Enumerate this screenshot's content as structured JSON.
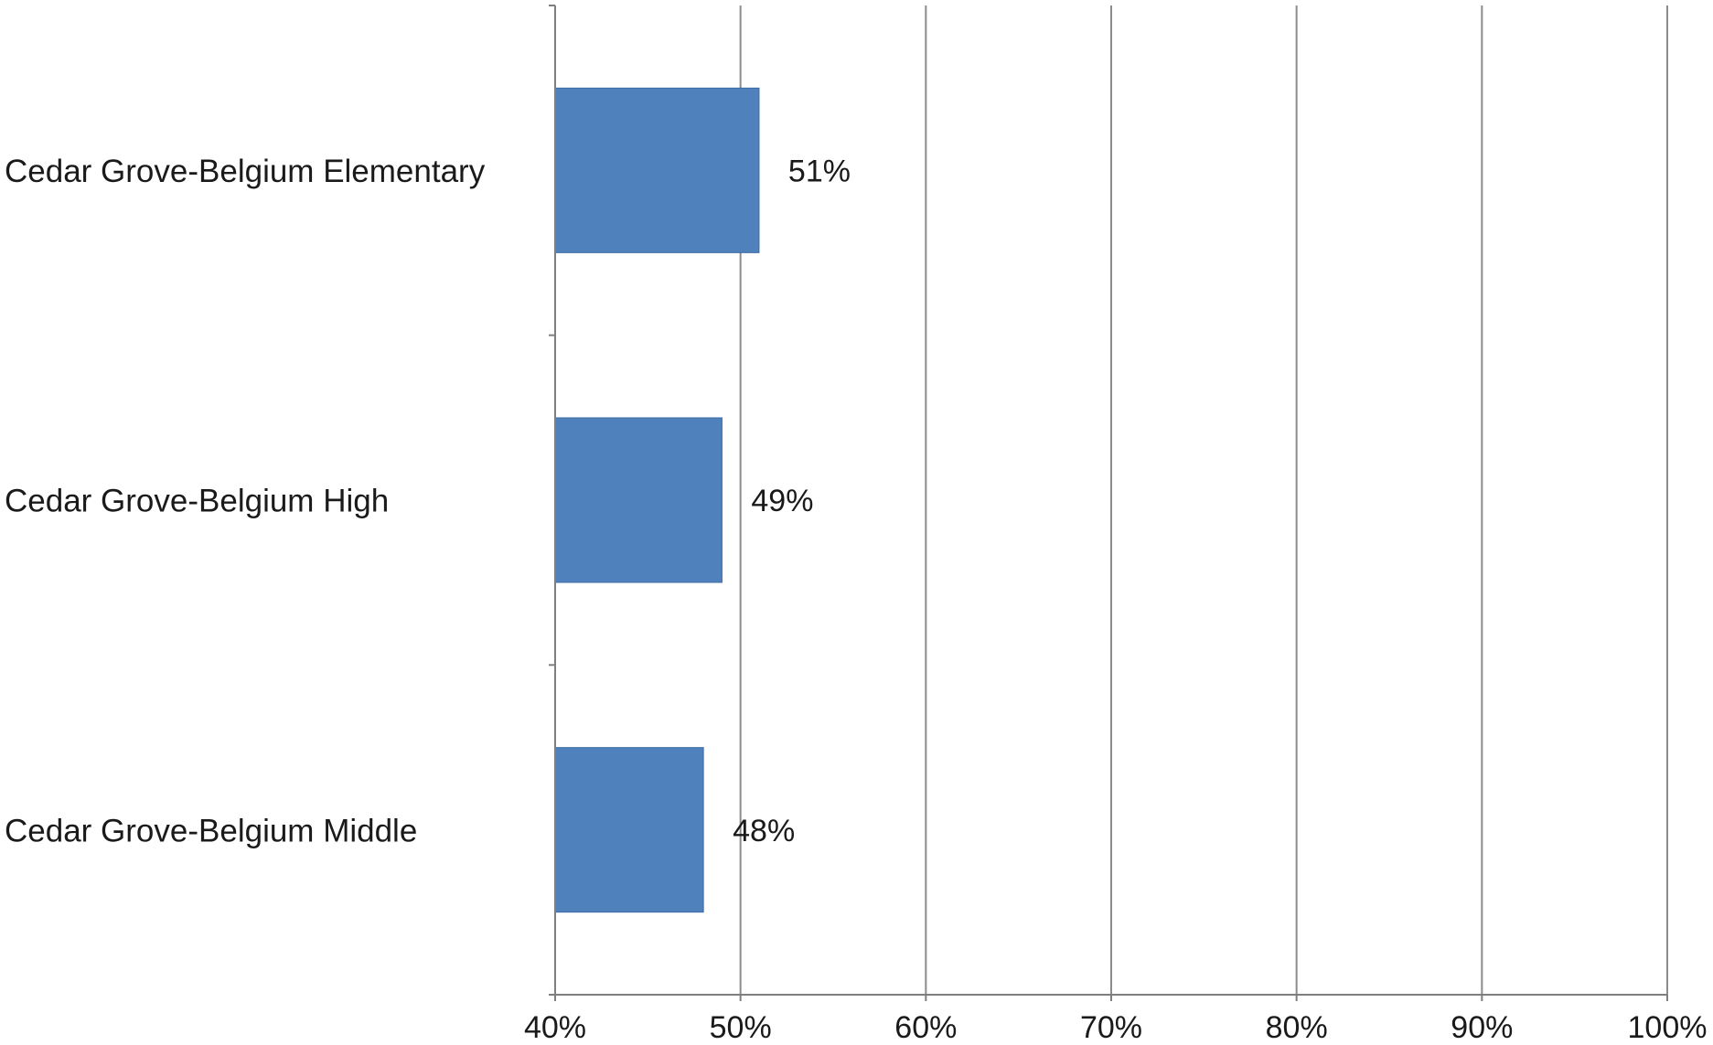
{
  "chart_data": {
    "type": "bar",
    "orientation": "horizontal",
    "categories": [
      "Cedar Grove-Belgium Elementary",
      "Cedar Grove-Belgium High",
      "Cedar Grove-Belgium Middle"
    ],
    "values": [
      51,
      49,
      48
    ],
    "data_labels": [
      "51%",
      "49%",
      "48%"
    ],
    "xlim": [
      40,
      100
    ],
    "x_ticks": [
      40,
      50,
      60,
      70,
      80,
      90,
      100
    ],
    "x_tick_labels": [
      "40%",
      "50%",
      "60%",
      "70%",
      "80%",
      "90%",
      "100%"
    ],
    "title": "",
    "xlabel": "",
    "ylabel": "",
    "grid": "vertical",
    "legend": "none",
    "bar_color": "#4f81bd",
    "bar_edge_color": "#3c6aa3",
    "grid_color": "#8c8c8c",
    "axis_color": "#7f7f7f",
    "text_color": "#1a1a1a"
  }
}
